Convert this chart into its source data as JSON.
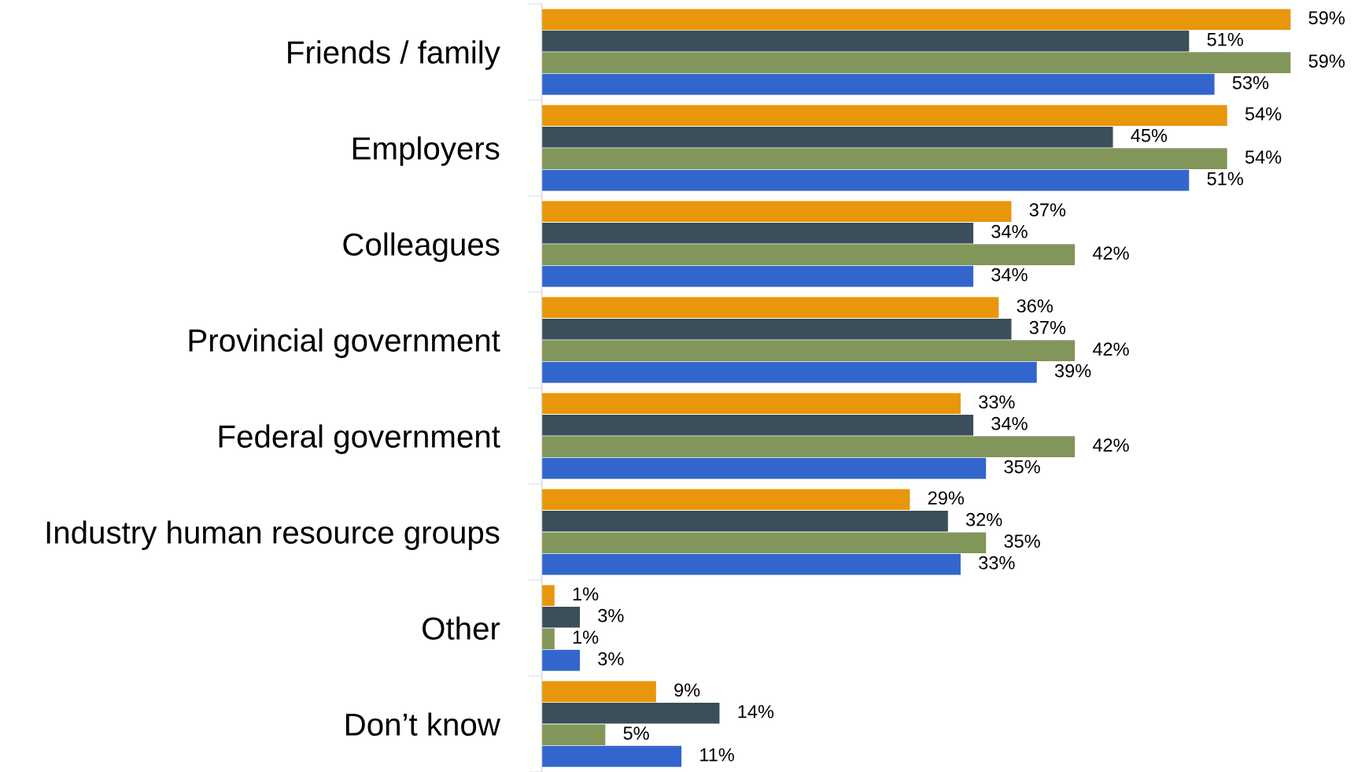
{
  "chart_data": {
    "type": "bar",
    "orientation": "horizontal",
    "categories": [
      "Friends / family",
      "Employers",
      "Colleagues",
      "Provincial government",
      "Federal government",
      "Industry human resource groups",
      "Other",
      "Don’t know"
    ],
    "series": [
      {
        "color": "#e8960c",
        "values": [
          59,
          54,
          37,
          36,
          33,
          29,
          1,
          9
        ],
        "value_labels": [
          "59%",
          "54%",
          "37%",
          "36%",
          "33%",
          "29%",
          "1%",
          "9%"
        ]
      },
      {
        "color": "#3b4f5a",
        "values": [
          51,
          45,
          34,
          37,
          34,
          32,
          3,
          14
        ],
        "value_labels": [
          "51%",
          "45%",
          "34%",
          "37%",
          "34%",
          "32%",
          "3%",
          "14%"
        ]
      },
      {
        "color": "#82965a",
        "values": [
          59,
          54,
          42,
          42,
          42,
          35,
          1,
          5
        ],
        "value_labels": [
          "59%",
          "54%",
          "42%",
          "42%",
          "42%",
          "35%",
          "1%",
          "5%"
        ]
      },
      {
        "color": "#3366cc",
        "values": [
          53,
          51,
          34,
          39,
          35,
          33,
          3,
          11
        ],
        "value_labels": [
          "53%",
          "51%",
          "34%",
          "39%",
          "35%",
          "33%",
          "3%",
          "11%"
        ]
      }
    ],
    "grid": false,
    "legend": false
  }
}
